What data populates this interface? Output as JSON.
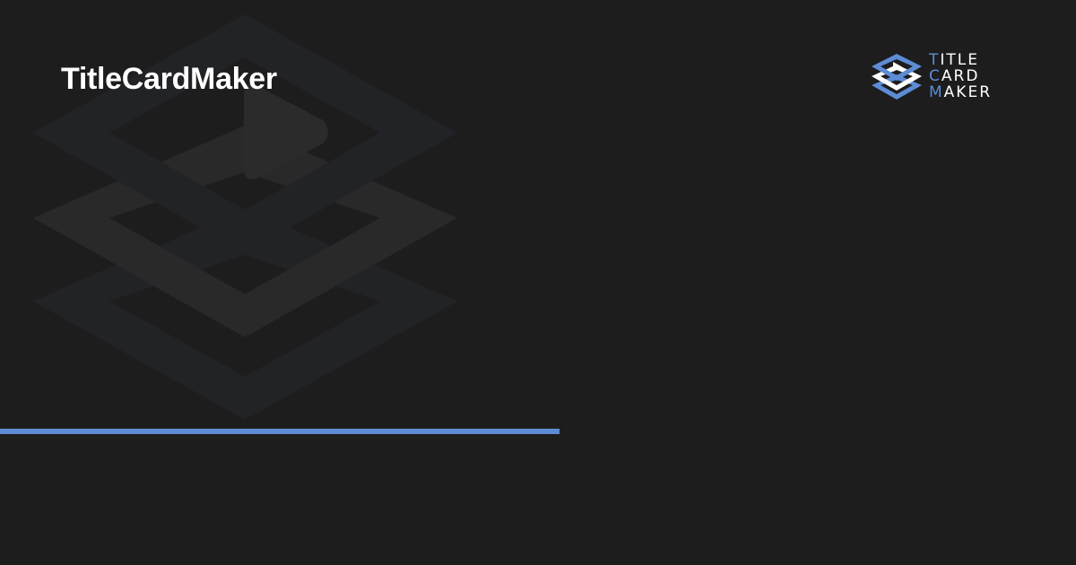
{
  "header": {
    "title": "TitleCardMaker"
  },
  "brand": {
    "words": [
      {
        "accent": "T",
        "rest": "ITLE"
      },
      {
        "accent": "C",
        "rest": "ARD"
      },
      {
        "accent": "M",
        "rest": "AKER"
      }
    ]
  },
  "icons": {
    "background": "layered-diamond-play-icon",
    "logo": "title-card-maker-logo-icon"
  },
  "colors": {
    "background": "#1d1d1e",
    "accent": "#5d8cd5",
    "title_text": "#ffffff",
    "watermark_layer": "#222326",
    "watermark_play": "#2b2b2c"
  }
}
